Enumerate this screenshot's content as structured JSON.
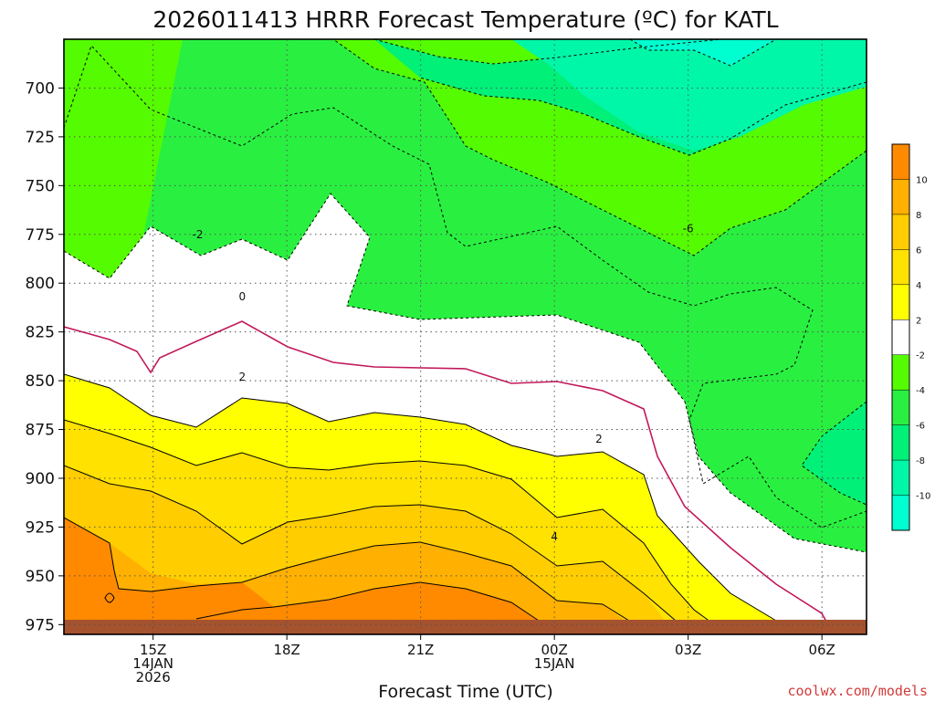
{
  "title": "2026011413 HRRR Forecast Temperature (ºC) for KATL",
  "credit": "coolwx.com/models",
  "colors": {
    "ground": "#a5522e",
    "zero_line": "#c2185b",
    "frame": "#000000"
  },
  "chart_data": {
    "type": "contour",
    "title": "2026011413 HRRR Forecast Temperature (ºC) for KATL",
    "xlabel": "Forecast Time (UTC)",
    "ylabel": "",
    "xlim": [
      "2026-01-14T13Z",
      "2026-01-15T07Z"
    ],
    "ylim_hPa": [
      980,
      675
    ],
    "y_ticks": [
      700,
      725,
      750,
      775,
      800,
      825,
      850,
      875,
      900,
      925,
      950,
      975
    ],
    "x_ticks": [
      {
        "time": "2026-01-14T15Z",
        "lines": [
          "15Z",
          "14JAN",
          "2026"
        ]
      },
      {
        "time": "2026-01-14T18Z",
        "lines": [
          "18Z"
        ]
      },
      {
        "time": "2026-01-14T21Z",
        "lines": [
          "21Z"
        ]
      },
      {
        "time": "2026-01-15T00Z",
        "lines": [
          "00Z",
          "15JAN"
        ]
      },
      {
        "time": "2026-01-15T03Z",
        "lines": [
          "03Z"
        ]
      },
      {
        "time": "2026-01-15T06Z",
        "lines": [
          "06Z"
        ]
      }
    ],
    "grid": true,
    "colorbar": {
      "position": "right",
      "bands": [
        {
          "from": -12,
          "to": -10,
          "color": "#00ffd0"
        },
        {
          "from": -10,
          "to": -8,
          "color": "#00f7a8"
        },
        {
          "from": -8,
          "to": -6,
          "color": "#00f078"
        },
        {
          "from": -6,
          "to": -4,
          "color": "#29f040"
        },
        {
          "from": -4,
          "to": -2,
          "color": "#55fb00"
        },
        {
          "from": -2,
          "to": 2,
          "color": "#ffffff"
        },
        {
          "from": 2,
          "to": 4,
          "color": "#ffff00"
        },
        {
          "from": 4,
          "to": 6,
          "color": "#ffe200"
        },
        {
          "from": 6,
          "to": 8,
          "color": "#ffcd00"
        },
        {
          "from": 8,
          "to": 10,
          "color": "#ffb000"
        },
        {
          "from": 10,
          "to": 12,
          "color": "#ff8a00"
        }
      ],
      "tick_labels": [
        "10",
        "8",
        "6",
        "4",
        "2",
        "-2",
        "-4",
        "-6",
        "-8",
        "-10"
      ]
    },
    "contour_labels": [
      {
        "value": "-2",
        "time": "2026-01-14T16Z",
        "hPa": 775
      },
      {
        "value": "0",
        "time": "2026-01-14T17Z",
        "hPa": 807
      },
      {
        "value": "2",
        "time": "2026-01-14T17Z",
        "hPa": 848
      },
      {
        "value": "-6",
        "time": "2026-01-15T03Z",
        "hPa": 772
      },
      {
        "value": "2",
        "time": "2026-01-15T01Z",
        "hPa": 880
      },
      {
        "value": "4",
        "time": "2026-01-15T00Z",
        "hPa": 930
      }
    ]
  }
}
